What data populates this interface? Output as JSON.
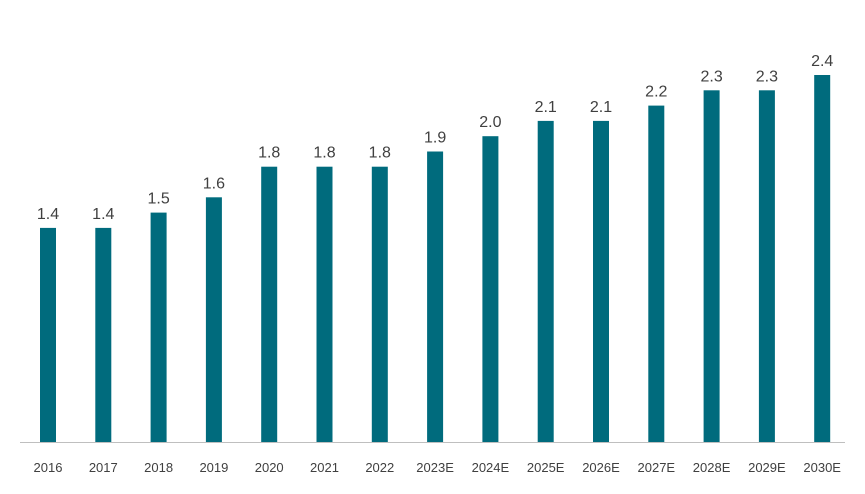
{
  "chart_data": {
    "type": "bar",
    "title": "",
    "xlabel": "",
    "ylabel": "",
    "categories": [
      "2016",
      "2017",
      "2018",
      "2019",
      "2020",
      "2021",
      "2022",
      "2023E",
      "2024E",
      "2025E",
      "2026E",
      "2027E",
      "2028E",
      "2029E",
      "2030E"
    ],
    "values": [
      1.4,
      1.4,
      1.5,
      1.6,
      1.8,
      1.8,
      1.8,
      1.9,
      2.0,
      2.1,
      2.1,
      2.2,
      2.3,
      2.3,
      2.4
    ],
    "value_labels": [
      "1.4",
      "1.4",
      "1.5",
      "1.6",
      "1.8",
      "1.8",
      "1.8",
      "1.9",
      "2.0",
      "2.1",
      "2.1",
      "2.2",
      "2.3",
      "2.3",
      "2.4"
    ],
    "ylim": [
      0,
      2.4
    ],
    "grid": false,
    "legend": "none",
    "bar_color": "#006b7d",
    "axis_color": "#bfbfbf",
    "text_color": "#404040"
  }
}
